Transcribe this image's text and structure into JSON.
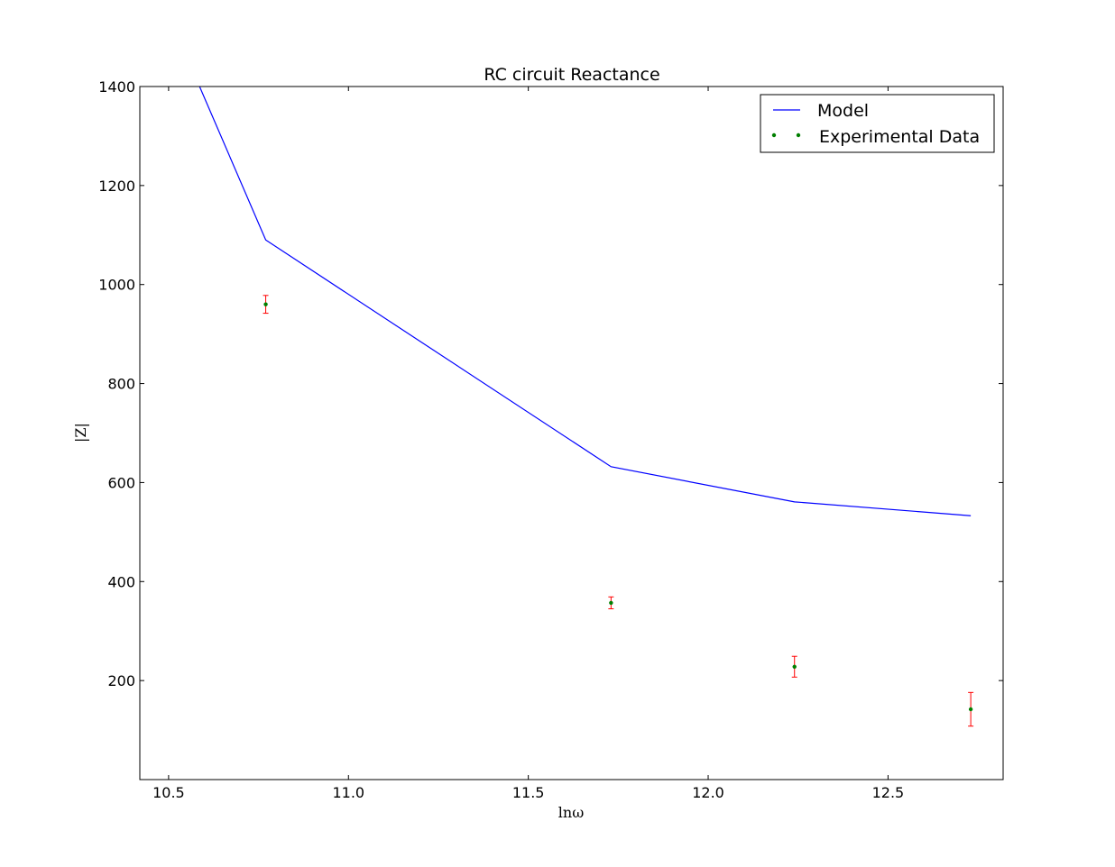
{
  "chart_data": {
    "type": "line",
    "title": "RC circuit Reactance",
    "xlabel": "lnω",
    "ylabel": "|Z|",
    "xlim": [
      10.42,
      12.82
    ],
    "ylim": [
      0,
      1400
    ],
    "x_ticks": [
      "10.5",
      "11.0",
      "11.5",
      "12.0",
      "12.5"
    ],
    "y_ticks": [
      "200",
      "400",
      "600",
      "800",
      "1000",
      "1200",
      "1400"
    ],
    "grid": false,
    "legend_position": "top-right",
    "colors": {
      "model": "#0000ff",
      "data": "#007f00",
      "error": "#ff0000"
    },
    "series": [
      {
        "name": "Model",
        "style": "line",
        "x": [
          10.42,
          10.77,
          11.73,
          12.24,
          12.73
        ],
        "y": [
          1680,
          1090,
          632,
          561,
          533
        ]
      },
      {
        "name": "Experimental Data",
        "style": "points",
        "x": [
          10.77,
          11.73,
          12.24,
          12.73
        ],
        "y": [
          960,
          357,
          228,
          142
        ],
        "yerr": [
          18,
          12,
          21,
          34
        ]
      }
    ]
  }
}
